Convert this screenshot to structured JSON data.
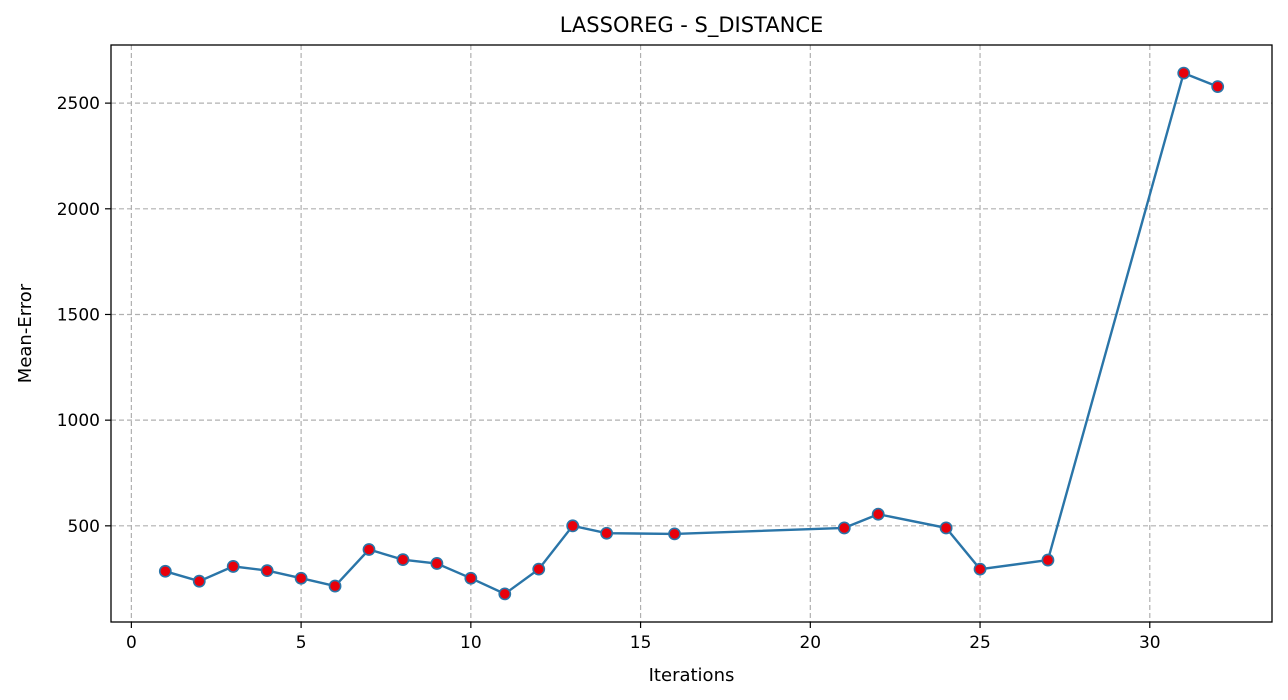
{
  "chart_data": {
    "type": "line",
    "title": "LASSOREG - S_DISTANCE",
    "xlabel": "Iterations",
    "ylabel": "Mean-Error",
    "xlim": [
      -0.6,
      33.6
    ],
    "ylim": [
      45,
      2775
    ],
    "xticks": [
      0,
      5,
      10,
      15,
      20,
      25,
      30
    ],
    "yticks": [
      500,
      1000,
      1500,
      2000,
      2500
    ],
    "grid": true,
    "series": [
      {
        "color": "#2a75a8",
        "marker_color": "#e8000b",
        "x": [
          1,
          2,
          3,
          4,
          5,
          6,
          7,
          8,
          9,
          10,
          11,
          12,
          13,
          14,
          16,
          21,
          22,
          24,
          25,
          27,
          31,
          32
        ],
        "y": [
          285,
          238,
          308,
          288,
          252,
          215,
          388,
          340,
          322,
          252,
          178,
          295,
          500,
          465,
          462,
          490,
          555,
          490,
          295,
          338,
          2642,
          2578
        ]
      }
    ]
  }
}
